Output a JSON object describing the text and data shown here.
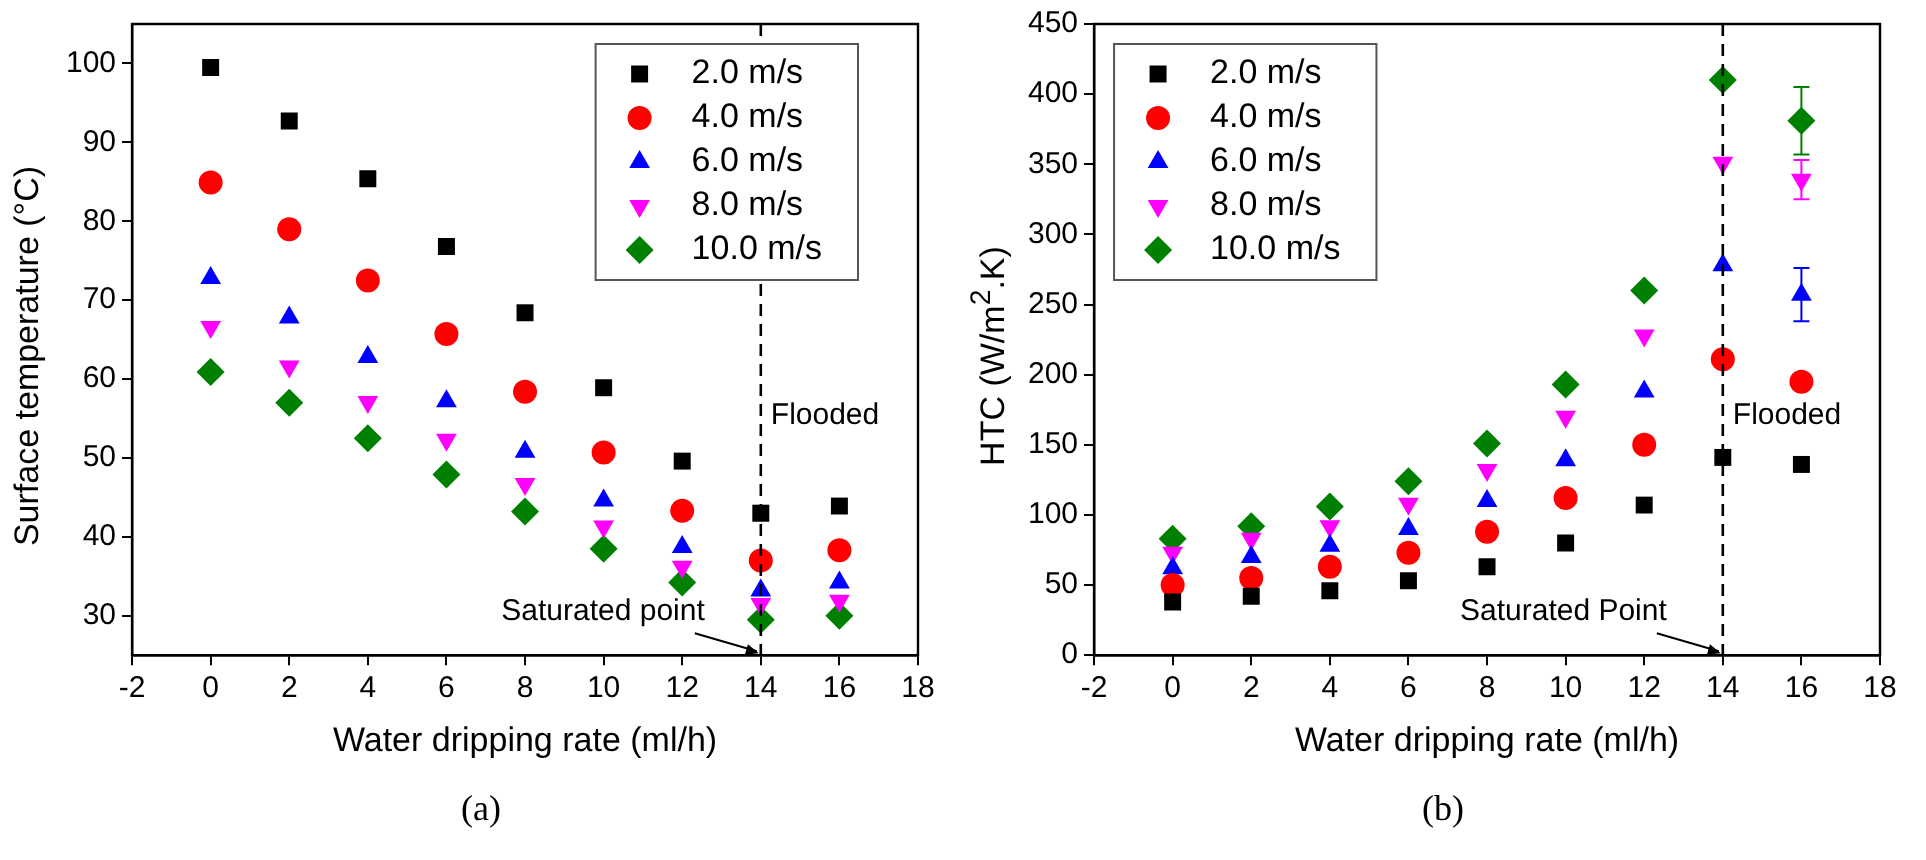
{
  "chart_data": [
    {
      "type": "scatter",
      "xlabel": "Water dripping rate (ml/h)",
      "ylabel": "Surface temperature (°C)",
      "xlim": [
        -2,
        18
      ],
      "xticks": [
        -2,
        0,
        2,
        4,
        6,
        8,
        10,
        12,
        14,
        16,
        18
      ],
      "ylim": [
        25,
        105
      ],
      "yticks": [
        30,
        40,
        50,
        60,
        70,
        80,
        90,
        100
      ],
      "grid": false,
      "legend": "top right",
      "x": [
        0,
        2,
        4,
        6,
        8,
        10,
        12,
        14,
        16
      ],
      "series": [
        {
          "name": "2.0 m/s",
          "color": "#000000",
          "marker": "square",
          "values": [
            99.5,
            92.7,
            85.4,
            76.8,
            68.4,
            58.9,
            49.6,
            43.0,
            43.9
          ]
        },
        {
          "name": "4.0 m/s",
          "color": "#ff0000",
          "marker": "circle",
          "values": [
            84.9,
            79.0,
            72.5,
            65.7,
            58.4,
            50.7,
            43.3,
            37.0,
            38.3
          ]
        },
        {
          "name": "6.0 m/s",
          "color": "#0000ff",
          "marker": "triangle",
          "values": [
            72.8,
            67.8,
            62.8,
            57.2,
            50.8,
            44.6,
            38.7,
            33.2,
            34.2
          ]
        },
        {
          "name": "8.0 m/s",
          "color": "#ff00ff",
          "marker": "triangle-down",
          "values": [
            66.6,
            61.6,
            57.1,
            52.3,
            46.7,
            41.3,
            36.2,
            31.5,
            31.9
          ]
        },
        {
          "name": "10.0 m/s",
          "color": "#008000",
          "marker": "diamond",
          "values": [
            60.9,
            57.0,
            52.5,
            47.9,
            43.2,
            38.5,
            34.2,
            29.5,
            30.0
          ]
        }
      ],
      "ref_lines": [
        {
          "axis": "x",
          "value": 14,
          "label": "Flooded",
          "color": "#000000",
          "line_style": "dashed"
        }
      ],
      "annotations": [
        {
          "text": "Saturated point",
          "x": 14,
          "y": 25
        },
        "(a)"
      ]
    },
    {
      "type": "scatter",
      "xlabel": "Water dripping rate (ml/h)",
      "ylabel": "HTC (W/m$^{2}$.K)",
      "xlim": [
        -2,
        18
      ],
      "xticks": [
        -2,
        0,
        2,
        4,
        6,
        8,
        10,
        12,
        14,
        16,
        18
      ],
      "ylim": [
        0,
        450
      ],
      "yticks": [
        0,
        50,
        100,
        150,
        200,
        250,
        300,
        350,
        400,
        450
      ],
      "grid": false,
      "legend": "top left",
      "x": [
        0,
        2,
        4,
        6,
        8,
        10,
        12,
        14,
        16
      ],
      "series": [
        {
          "name": "2.0 m/s",
          "color": "#000000",
          "marker": "square",
          "values": [
            38,
            42,
            46,
            53,
            63,
            80,
            107,
            141,
            136
          ]
        },
        {
          "name": "4.0 m/s",
          "color": "#ff0000",
          "marker": "circle",
          "values": [
            50,
            55,
            63,
            73,
            88,
            112,
            150,
            211,
            195
          ]
        },
        {
          "name": "6.0 m/s",
          "color": "#0000ff",
          "marker": "triangle",
          "values": [
            62,
            70,
            78,
            90,
            110,
            139,
            188,
            278,
            257
          ],
          "errors": [
            null,
            null,
            null,
            null,
            null,
            null,
            null,
            null,
            19
          ]
        },
        {
          "name": "8.0 m/s",
          "color": "#ff00ff",
          "marker": "triangle-down",
          "values": [
            73,
            83,
            92,
            108,
            132,
            170,
            228,
            351,
            339
          ],
          "errors": [
            null,
            null,
            null,
            null,
            null,
            null,
            null,
            null,
            14
          ]
        },
        {
          "name": "10.0 m/s",
          "color": "#008000",
          "marker": "diamond",
          "values": [
            83,
            92,
            106,
            124,
            151,
            193,
            260,
            410,
            381
          ],
          "errors": [
            null,
            null,
            null,
            null,
            null,
            null,
            null,
            null,
            24
          ]
        }
      ],
      "ref_lines": [
        {
          "axis": "x",
          "value": 14,
          "label": "Flooded",
          "color": "#000000",
          "line_style": "dashed"
        }
      ],
      "annotations": [
        {
          "text": "Saturated Point",
          "x": 14,
          "y": 0
        },
        "(b)"
      ]
    }
  ]
}
